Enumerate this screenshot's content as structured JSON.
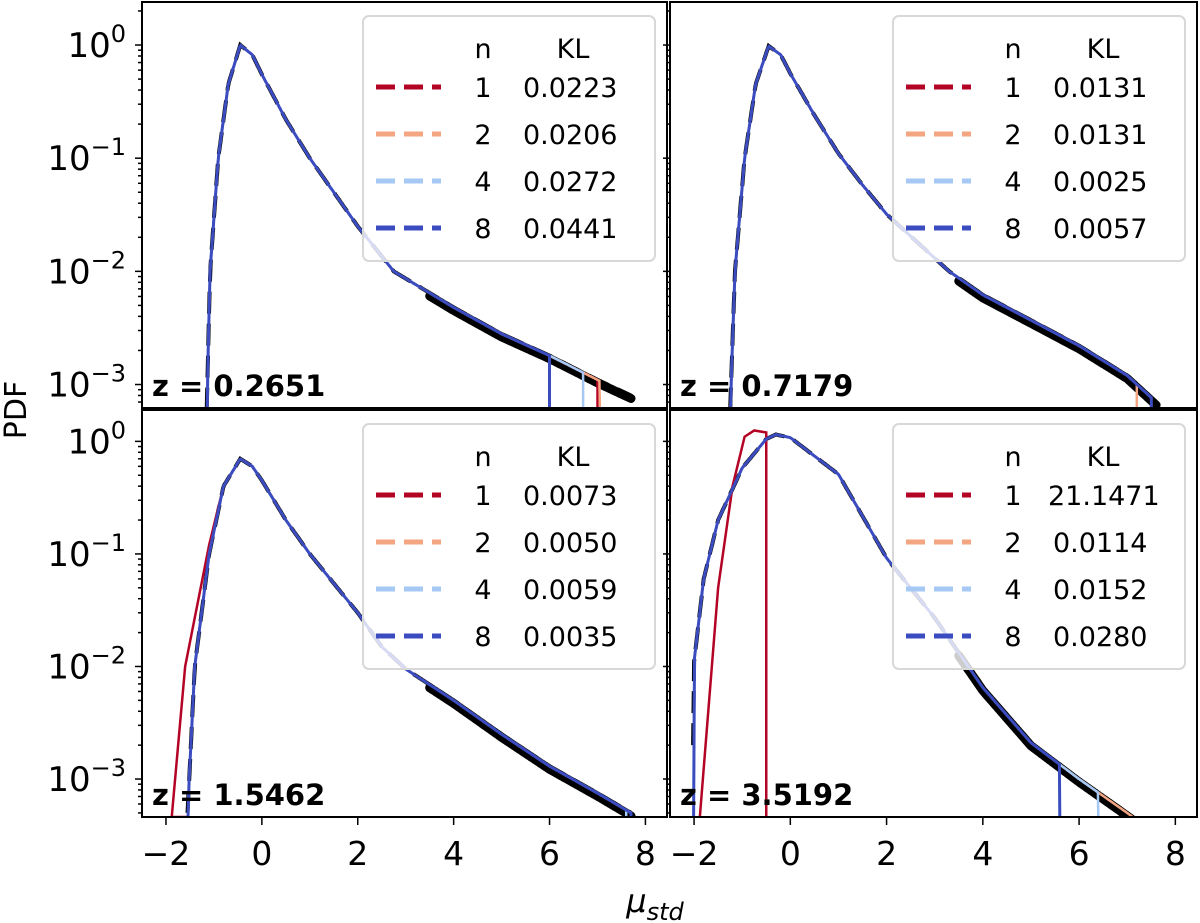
{
  "chart_data": {
    "type": "line",
    "xlabel": "μ",
    "xlabel_sub": "std",
    "ylabel": "PDF",
    "yscale": "log",
    "xlim": [
      -2.5,
      8.45
    ],
    "xticks": [
      -2,
      0,
      2,
      4,
      6,
      8
    ],
    "xtick_labels": [
      "−2",
      "0",
      "2",
      "4",
      "6",
      "8"
    ],
    "ytick_labels": [
      {
        "base": "10",
        "exp": "0"
      },
      {
        "base": "10",
        "exp": "−1"
      },
      {
        "base": "10",
        "exp": "−2"
      },
      {
        "base": "10",
        "exp": "−3"
      }
    ],
    "ytick_values": [
      1,
      0.1,
      0.01,
      0.001
    ],
    "legend_header": {
      "n": "n",
      "kl": "KL"
    },
    "legend_placement": "top-right",
    "colors": {
      "1": "#b40426",
      "2": "#f4a582",
      "4": "#a6c8f5",
      "8": "#3b4cc0",
      "reference": "#000000"
    },
    "panels": [
      {
        "label": "z = 0.2651",
        "ylim": [
          0.00062,
          2.4
        ],
        "reference": [
          [
            -1.15,
            0.0006
          ],
          [
            -1.08,
            0.01
          ],
          [
            -0.91,
            0.1
          ],
          [
            -0.7,
            0.45
          ],
          [
            -0.45,
            1.0
          ],
          [
            -0.2,
            0.82
          ],
          [
            0,
            0.55
          ],
          [
            0.5,
            0.22
          ],
          [
            1,
            0.1
          ],
          [
            1.5,
            0.05
          ],
          [
            2,
            0.025
          ],
          [
            2.75,
            0.01
          ],
          [
            4,
            0.0048
          ],
          [
            5,
            0.0028
          ],
          [
            6,
            0.0018
          ],
          [
            7,
            0.0011
          ],
          [
            7.7,
            0.0008
          ]
        ],
        "series": [
          {
            "n": "1",
            "kl": "0.0223",
            "end": 7.0
          },
          {
            "n": "2",
            "kl": "0.0206",
            "end": 7.05
          },
          {
            "n": "4",
            "kl": "0.0272",
            "end": 6.7
          },
          {
            "n": "8",
            "kl": "0.0441",
            "end": 6.0
          }
        ]
      },
      {
        "label": "z = 0.7179",
        "ylim": [
          0.00062,
          2.4
        ],
        "reference": [
          [
            -1.25,
            0.0006
          ],
          [
            -1.15,
            0.01
          ],
          [
            -0.95,
            0.1
          ],
          [
            -0.72,
            0.45
          ],
          [
            -0.45,
            0.98
          ],
          [
            -0.2,
            0.82
          ],
          [
            0,
            0.56
          ],
          [
            0.5,
            0.24
          ],
          [
            1,
            0.11
          ],
          [
            1.5,
            0.058
          ],
          [
            2,
            0.032
          ],
          [
            3.3,
            0.01
          ],
          [
            4,
            0.0062
          ],
          [
            5,
            0.0037
          ],
          [
            6,
            0.0022
          ],
          [
            7,
            0.0012
          ],
          [
            7.6,
            0.0007
          ]
        ],
        "series": [
          {
            "n": "1",
            "kl": "0.0131",
            "end": 7.5
          },
          {
            "n": "2",
            "kl": "0.0131",
            "end": 7.2
          },
          {
            "n": "4",
            "kl": "0.0025",
            "end": 7.5
          },
          {
            "n": "8",
            "kl": "0.0057",
            "end": 7.5
          }
        ]
      },
      {
        "label": "z = 1.5462",
        "ylim": [
          0.00046,
          1.9
        ],
        "reference": [
          [
            -1.55,
            0.0005
          ],
          [
            -1.4,
            0.01
          ],
          [
            -1.1,
            0.1
          ],
          [
            -0.8,
            0.4
          ],
          [
            -0.45,
            0.7
          ],
          [
            -0.2,
            0.6
          ],
          [
            0,
            0.45
          ],
          [
            0.5,
            0.2
          ],
          [
            1,
            0.1
          ],
          [
            2,
            0.03
          ],
          [
            2.5,
            0.015
          ],
          [
            3,
            0.0095
          ],
          [
            4,
            0.005
          ],
          [
            5,
            0.0025
          ],
          [
            6,
            0.0013
          ],
          [
            7,
            0.00075
          ],
          [
            7.7,
            0.0005
          ]
        ],
        "series": [
          {
            "n": "1",
            "kl": "0.0073",
            "end": 7.7
          },
          {
            "n": "2",
            "kl": "0.0050",
            "end": 7.7
          },
          {
            "n": "4",
            "kl": "0.0059",
            "end": 7.6
          },
          {
            "n": "8",
            "kl": "0.0035",
            "end": 7.7
          }
        ]
      },
      {
        "label": "z = 3.5192",
        "ylim": [
          0.00046,
          1.9
        ],
        "reference": [
          [
            -2.02,
            0.002
          ],
          [
            -2,
            0.011
          ],
          [
            -1.8,
            0.06
          ],
          [
            -1.5,
            0.2
          ],
          [
            -1,
            0.58
          ],
          [
            -0.5,
            1.05
          ],
          [
            -0.3,
            1.15
          ],
          [
            0,
            1.08
          ],
          [
            1,
            0.51
          ],
          [
            2,
            0.092
          ],
          [
            3,
            0.027
          ],
          [
            4,
            0.0065
          ],
          [
            5,
            0.0021
          ],
          [
            6,
            0.001
          ],
          [
            7,
            0.0005
          ],
          [
            7.3,
            0.0004
          ]
        ],
        "series": [
          {
            "n": "1",
            "kl": "21.1471",
            "end": -0.5
          },
          {
            "n": "2",
            "kl": "0.0114",
            "end": 7.3
          },
          {
            "n": "4",
            "kl": "0.0152",
            "end": 6.4
          },
          {
            "n": "8",
            "kl": "0.0280",
            "end": 5.6
          }
        ]
      }
    ]
  }
}
